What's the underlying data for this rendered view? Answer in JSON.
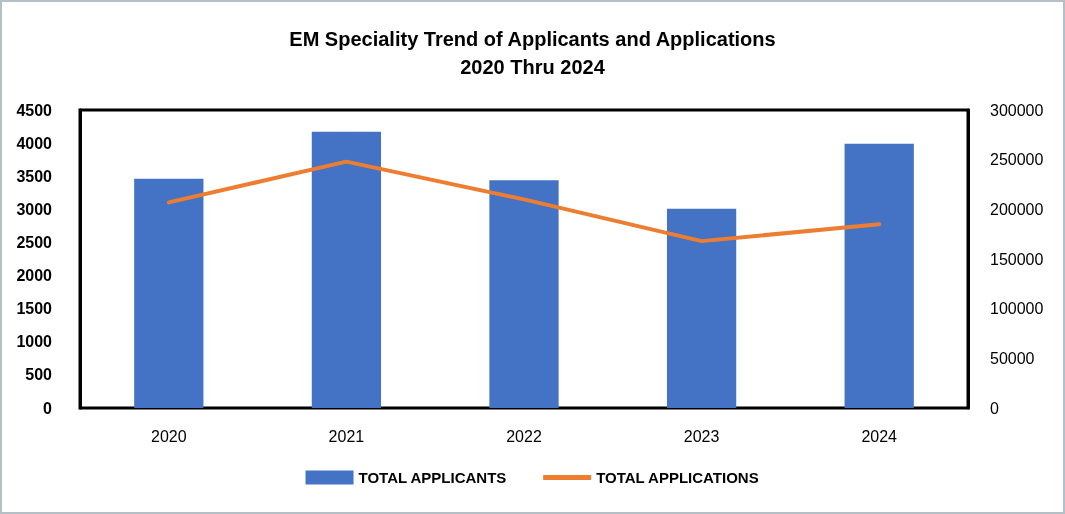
{
  "chart_data": {
    "type": "bar",
    "title": "EM Speciality Trend of Applicants and Applications",
    "subtitle": "2020 Thru 2024",
    "categories": [
      "2020",
      "2021",
      "2022",
      "2023",
      "2024"
    ],
    "series": [
      {
        "name": "TOTAL APPLICANTS",
        "color": "#4472c4",
        "values": [
          3460,
          4170,
          3440,
          3010,
          3990
        ]
      },
      {
        "name": "TOTAL APPLICATIONS",
        "type": "line",
        "axis": "y2",
        "color": "#ed7d31",
        "values": [
          207000,
          248000,
          210000,
          168000,
          185000
        ]
      }
    ],
    "ylim": [
      0,
      4500
    ],
    "yticks": [
      0,
      500,
      1000,
      1500,
      2000,
      2500,
      3000,
      3500,
      4000,
      4500
    ],
    "y2lim": [
      0,
      300000
    ],
    "y2ticks": [
      0,
      50000,
      100000,
      150000,
      200000,
      250000,
      300000
    ],
    "grid": false,
    "legend": "bottom",
    "marker": "none"
  }
}
